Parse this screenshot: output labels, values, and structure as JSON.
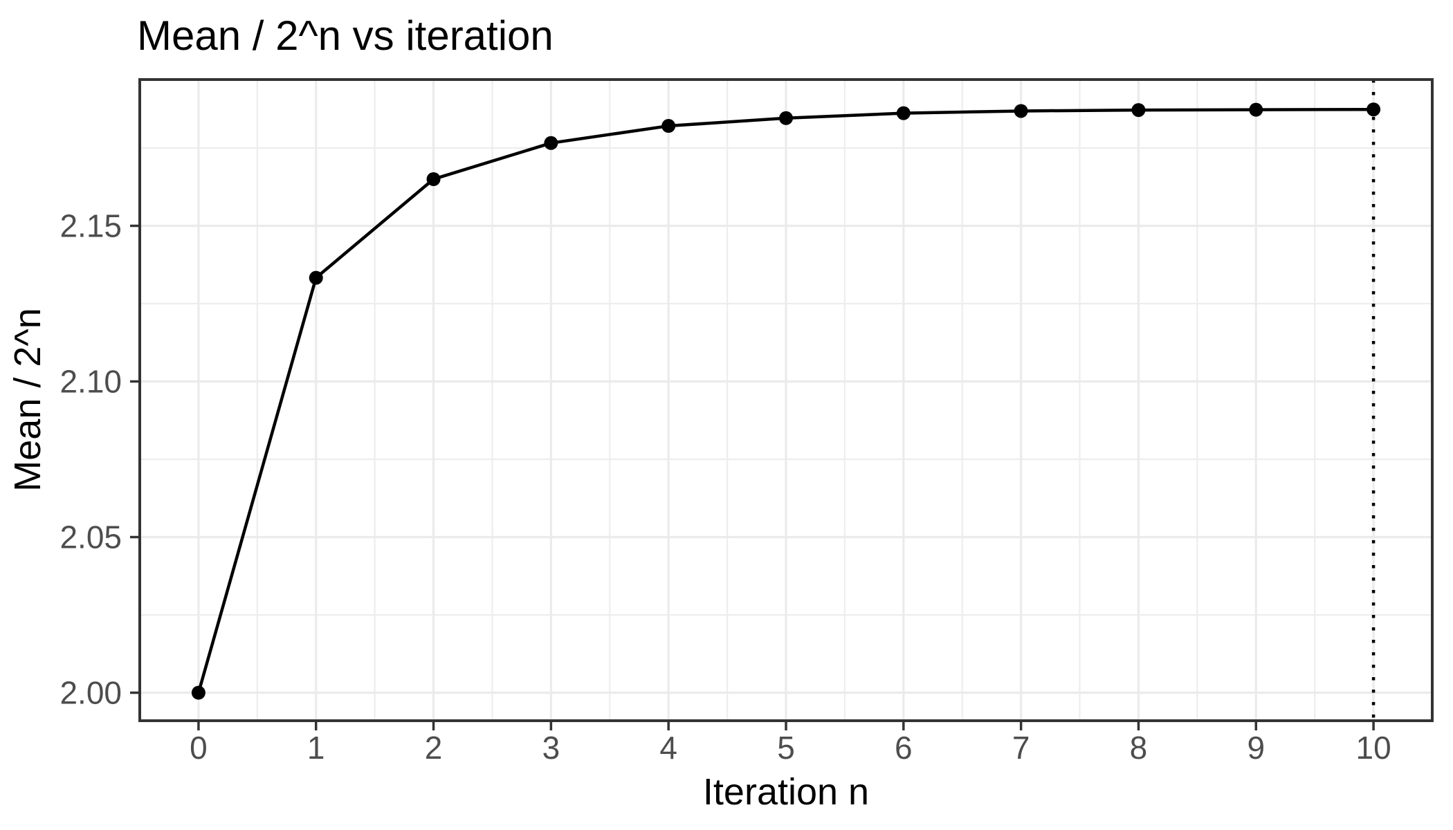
{
  "chart_data": {
    "type": "line",
    "title": "Mean / 2^n vs iteration",
    "xlabel": "Iteration n",
    "ylabel": "Mean / 2^n",
    "x": [
      0,
      1,
      2,
      3,
      4,
      5,
      6,
      7,
      8,
      9,
      10
    ],
    "y": [
      2.0,
      2.1333,
      2.165,
      2.1766,
      2.1821,
      2.1846,
      2.1862,
      2.1869,
      2.1872,
      2.1873,
      2.1874
    ],
    "series_name": "Mean / 2^n",
    "x_ticks": [
      "0",
      "1",
      "2",
      "3",
      "4",
      "5",
      "6",
      "7",
      "8",
      "9",
      "10"
    ],
    "x_tick_values": [
      0,
      1,
      2,
      3,
      4,
      5,
      6,
      7,
      8,
      9,
      10
    ],
    "y_ticks": [
      "2.00",
      "2.05",
      "2.10",
      "2.15"
    ],
    "y_tick_values": [
      2.0,
      2.05,
      2.1,
      2.15
    ],
    "xlim": [
      -0.5,
      10.5
    ],
    "ylim": [
      1.991,
      2.197
    ],
    "grid": "major+minor",
    "legend_position": "none",
    "reference_line": {
      "orientation": "vertical",
      "x": 10,
      "linetype": "dotted",
      "color": "#000000"
    },
    "colors": {
      "line": "#000000",
      "point": "#000000",
      "panel_border": "#333333",
      "grid_major": "#EBEBEB",
      "grid_minor": "#EDEDED",
      "tick_mark": "#333333",
      "tick_label": "#4D4D4D",
      "axis_title": "#000000",
      "title": "#000000",
      "background": "#FFFFFF"
    }
  }
}
